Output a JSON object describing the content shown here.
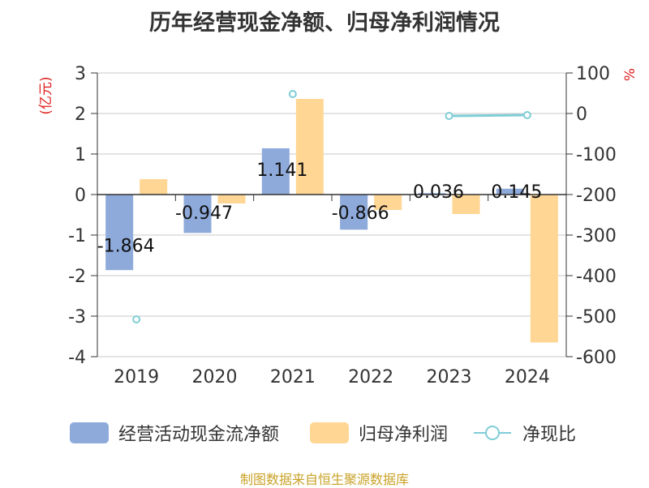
{
  "title": "历年经营现金净额、归母净利润情况",
  "source_note": "制图数据来自恒生聚源数据库",
  "chart_data": {
    "type": "bar",
    "categories": [
      "2019",
      "2020",
      "2021",
      "2022",
      "2023",
      "2024"
    ],
    "left_axis": {
      "label": "(亿元)",
      "ticks": [
        3,
        2,
        1,
        0,
        -1,
        -2,
        -3,
        -4
      ],
      "range": [
        -4,
        3
      ]
    },
    "right_axis": {
      "label": "%",
      "ticks": [
        100,
        0,
        -100,
        -200,
        -300,
        -400,
        -500,
        -600
      ],
      "range": [
        -600,
        100
      ]
    },
    "series": [
      {
        "name": "经营活动现金流净额",
        "kind": "bar",
        "axis": "left",
        "color": "#8eaadb",
        "values": [
          -1.864,
          -0.947,
          1.141,
          -0.866,
          0.036,
          0.145
        ],
        "data_labels": [
          "-1.864",
          "-0.947",
          "1.141",
          "-0.866",
          "0.036",
          "0.145"
        ]
      },
      {
        "name": "归母净利润",
        "kind": "bar",
        "axis": "left",
        "color": "#ffd694",
        "values": [
          0.38,
          -0.22,
          2.36,
          -0.38,
          -0.48,
          -3.65
        ]
      },
      {
        "name": "净现比",
        "kind": "line",
        "axis": "right",
        "color": "#7fcdd6",
        "values": [
          -508,
          null,
          48,
          null,
          -6,
          -4
        ]
      }
    ],
    "grid": true,
    "legend_position": "bottom"
  }
}
